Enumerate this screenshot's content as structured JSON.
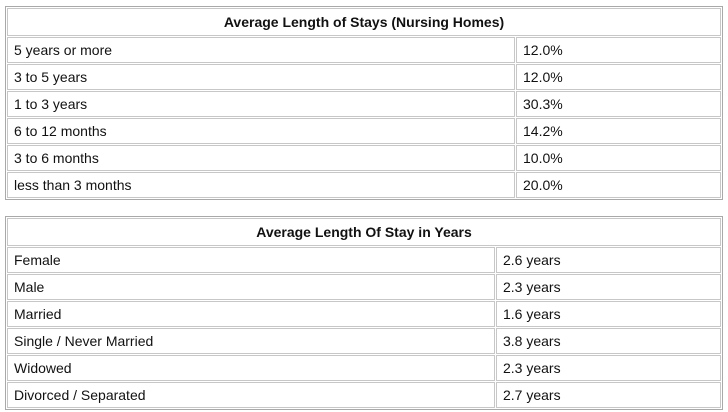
{
  "stays_table": {
    "title": "Average Length of Stays (Nursing Homes)",
    "rows": [
      {
        "label": "5 years or more",
        "value": "12.0%"
      },
      {
        "label": "3 to 5 years",
        "value": "12.0%"
      },
      {
        "label": "1 to 3 years",
        "value": "30.3%"
      },
      {
        "label": "6 to 12 months",
        "value": "14.2%"
      },
      {
        "label": "3 to 6 months",
        "value": "10.0%"
      },
      {
        "label": "less than 3 months",
        "value": "20.0%"
      }
    ]
  },
  "years_table": {
    "title": "Average Length Of Stay in Years",
    "rows": [
      {
        "label": "Female",
        "value": "2.6 years"
      },
      {
        "label": "Male",
        "value": "2.3 years"
      },
      {
        "label": "Married",
        "value": "1.6 years"
      },
      {
        "label": "Single / Never Married",
        "value": "3.8 years"
      },
      {
        "label": "Widowed",
        "value": "2.3 years"
      },
      {
        "label": "Divorced / Separated",
        "value": "2.7 years"
      }
    ]
  }
}
